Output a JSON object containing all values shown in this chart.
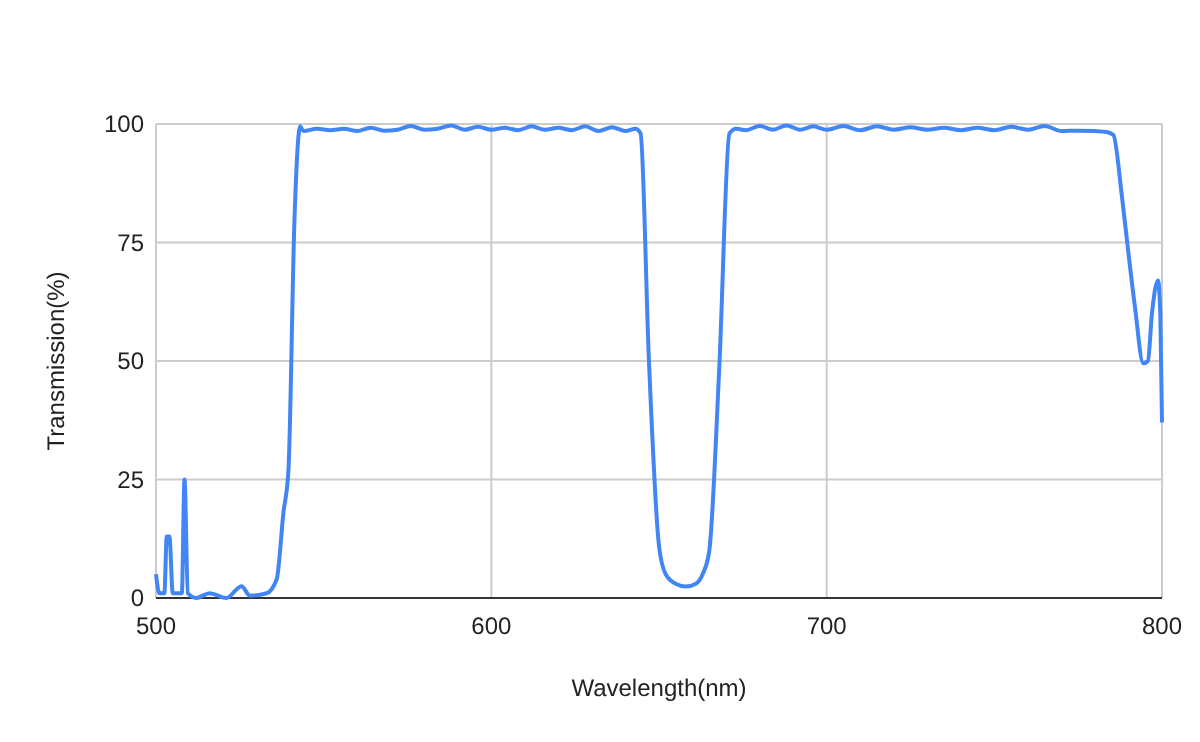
{
  "chart_data": {
    "type": "line",
    "xlabel": "Wavelength(nm)",
    "ylabel": "Transmission(%)",
    "xlim": [
      500,
      800
    ],
    "ylim": [
      0,
      100
    ],
    "xticks": [
      500,
      600,
      700,
      800
    ],
    "yticks": [
      0,
      25,
      50,
      75,
      100
    ],
    "grid": true,
    "series": [
      {
        "color": "#4285f4",
        "x": [
          500,
          501,
          502.5,
          503.2,
          504,
          505,
          507,
          507.7,
          508.5,
          509.5,
          512,
          516,
          521,
          525.5,
          528,
          533,
          536,
          538,
          539.5,
          541.3,
          543,
          544,
          548,
          552,
          556,
          560,
          564,
          568,
          572,
          576,
          580,
          584,
          588,
          592,
          596,
          600,
          604,
          608,
          612,
          616,
          620,
          624,
          628,
          632,
          636,
          640,
          643,
          644.5,
          647,
          650,
          652,
          655,
          658,
          661,
          663,
          665,
          668,
          671,
          673,
          676,
          680,
          684,
          688,
          692,
          696,
          700,
          705,
          710,
          715,
          720,
          725,
          730,
          735,
          740,
          745,
          750,
          755,
          760,
          765,
          770,
          775,
          780,
          783.5,
          785.5,
          788,
          790,
          792,
          794.4,
          795.8,
          797,
          798.8,
          799.5,
          800
        ],
        "values": [
          5,
          1,
          1,
          13,
          13,
          1,
          1,
          1,
          25,
          1,
          0,
          1,
          0,
          2.5,
          0.5,
          1,
          4,
          18,
          27,
          80,
          99.5,
          98.5,
          99,
          98.7,
          99,
          98.5,
          99.2,
          98.6,
          98.8,
          99.6,
          98.8,
          99,
          99.7,
          98.8,
          99.4,
          98.8,
          99.2,
          98.7,
          99.5,
          98.8,
          99.2,
          98.7,
          99.5,
          98.5,
          99.3,
          98.5,
          99,
          98,
          50,
          11,
          5,
          3,
          2.4,
          3,
          5,
          10,
          49,
          98,
          99,
          98.7,
          99.6,
          98.8,
          99.7,
          98.8,
          99.5,
          98.8,
          99.6,
          98.7,
          99.5,
          98.8,
          99.3,
          98.8,
          99.2,
          98.7,
          99.2,
          98.7,
          99.4,
          98.8,
          99.6,
          98.5,
          98.6,
          98.5,
          98.3,
          97.7,
          85,
          72.7,
          61,
          49.5,
          50,
          60,
          67,
          60,
          37
        ]
      }
    ]
  }
}
